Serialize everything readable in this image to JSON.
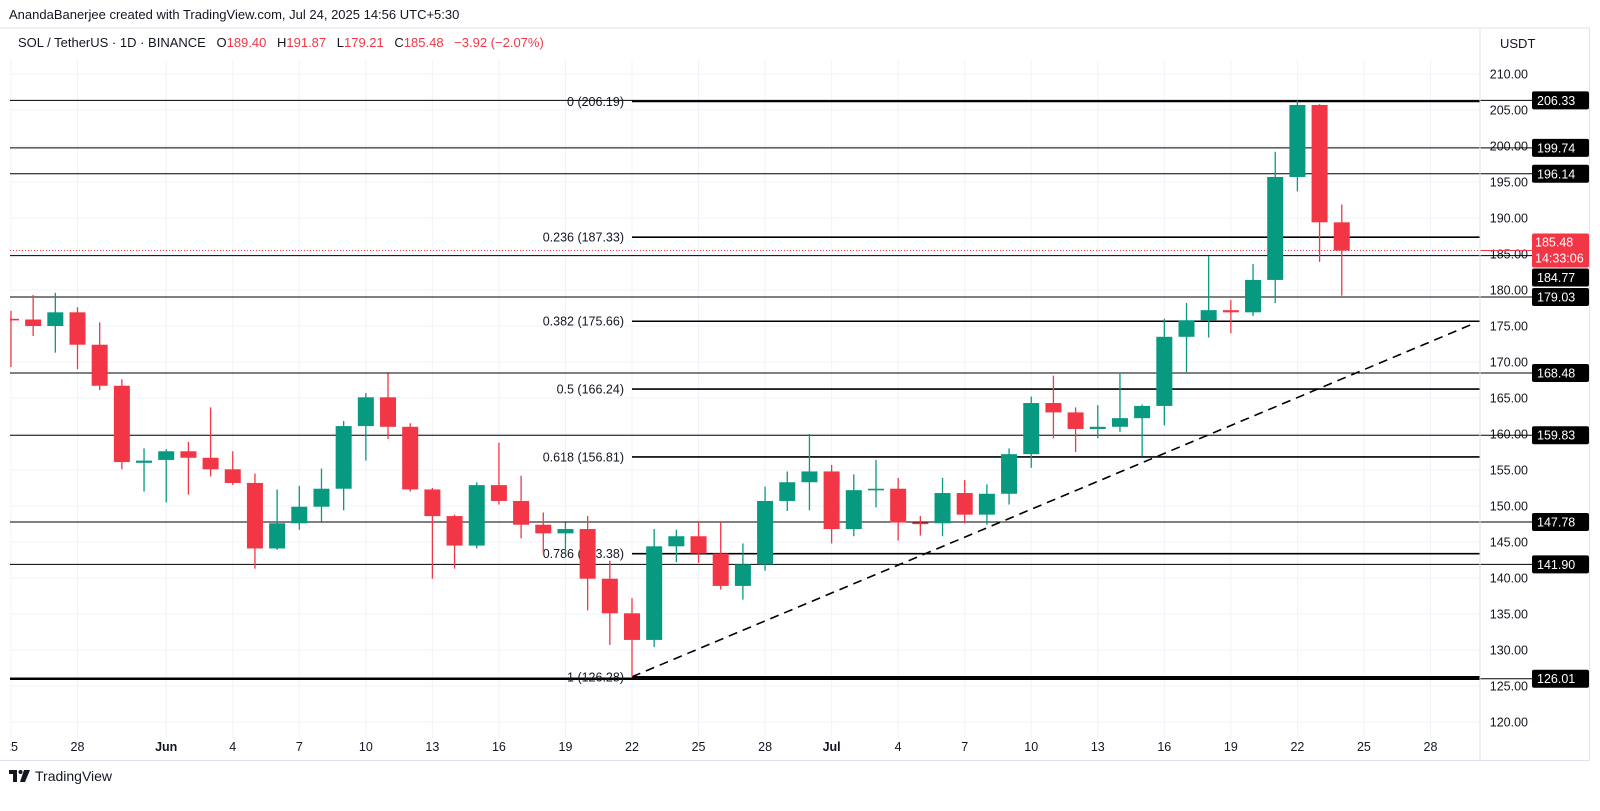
{
  "attribution": "AnandaBanerjee created with TradingView.com, Jul 24, 2025 14:56 UTC+5:30",
  "legend": {
    "symbol": "SOL / TetherUS · 1D · BINANCE",
    "o_label": "O",
    "o": "189.40",
    "h_label": "H",
    "h": "191.87",
    "l_label": "L",
    "l": "179.21",
    "c_label": "C",
    "c": "185.48",
    "change": "−3.92 (−2.07%)"
  },
  "currency": "USDT",
  "logo_text": "TradingView",
  "colors": {
    "up": "#089981",
    "down": "#F23645",
    "text": "#131722",
    "grid": "#f0f3fa",
    "level": "#000000"
  },
  "chart_data": {
    "type": "candlestick",
    "ylim": [
      117,
      212
    ],
    "grid": true,
    "y_ticks": [
      "210.00",
      "205.00",
      "200.00",
      "195.00",
      "190.00",
      "185.00",
      "180.00",
      "175.00",
      "170.00",
      "165.00",
      "160.00",
      "155.00",
      "150.00",
      "145.00",
      "140.00",
      "135.00",
      "130.00",
      "125.00",
      "120.00"
    ],
    "x_ticks": [
      {
        "date": "2025-05-25",
        "label": "25"
      },
      {
        "date": "2025-05-28",
        "label": "28"
      },
      {
        "date": "2025-06-01",
        "label": "Jun",
        "bold": true
      },
      {
        "date": "2025-06-04",
        "label": "4"
      },
      {
        "date": "2025-06-07",
        "label": "7"
      },
      {
        "date": "2025-06-10",
        "label": "10"
      },
      {
        "date": "2025-06-13",
        "label": "13"
      },
      {
        "date": "2025-06-16",
        "label": "16"
      },
      {
        "date": "2025-06-19",
        "label": "19"
      },
      {
        "date": "2025-06-22",
        "label": "22"
      },
      {
        "date": "2025-06-25",
        "label": "25"
      },
      {
        "date": "2025-06-28",
        "label": "28"
      },
      {
        "date": "2025-07-01",
        "label": "Jul",
        "bold": true
      },
      {
        "date": "2025-07-04",
        "label": "4"
      },
      {
        "date": "2025-07-07",
        "label": "7"
      },
      {
        "date": "2025-07-10",
        "label": "10"
      },
      {
        "date": "2025-07-13",
        "label": "13"
      },
      {
        "date": "2025-07-16",
        "label": "16"
      },
      {
        "date": "2025-07-19",
        "label": "19"
      },
      {
        "date": "2025-07-22",
        "label": "22"
      },
      {
        "date": "2025-07-25",
        "label": "25"
      },
      {
        "date": "2025-07-28",
        "label": "28"
      }
    ],
    "candles": [
      [
        "2025-05-25",
        176.0,
        177.1,
        169.3,
        175.8
      ],
      [
        "2025-05-26",
        175.9,
        179.3,
        173.6,
        175.0
      ],
      [
        "2025-05-27",
        175.0,
        179.6,
        171.3,
        176.9
      ],
      [
        "2025-05-28",
        176.9,
        177.6,
        169.0,
        172.4
      ],
      [
        "2025-05-29",
        172.4,
        175.5,
        166.1,
        166.7
      ],
      [
        "2025-05-30",
        166.7,
        167.6,
        155.1,
        156.1
      ],
      [
        "2025-05-31",
        156.0,
        158.0,
        152.0,
        156.3
      ],
      [
        "2025-06-01",
        156.4,
        157.9,
        150.5,
        157.6
      ],
      [
        "2025-06-02",
        157.6,
        158.9,
        151.6,
        156.7
      ],
      [
        "2025-06-03",
        156.7,
        163.7,
        154.1,
        155.1
      ],
      [
        "2025-06-04",
        155.1,
        157.6,
        152.9,
        153.2
      ],
      [
        "2025-06-05",
        153.2,
        154.5,
        141.3,
        144.1
      ],
      [
        "2025-06-06",
        144.1,
        152.3,
        143.9,
        147.6
      ],
      [
        "2025-06-07",
        147.6,
        152.8,
        146.7,
        149.9
      ],
      [
        "2025-06-08",
        149.9,
        155.2,
        147.8,
        152.4
      ],
      [
        "2025-06-09",
        152.4,
        161.8,
        149.4,
        161.1
      ],
      [
        "2025-06-10",
        161.1,
        165.7,
        156.3,
        165.1
      ],
      [
        "2025-06-11",
        165.1,
        168.4,
        159.3,
        161.0
      ],
      [
        "2025-06-12",
        161.0,
        161.5,
        152.0,
        152.3
      ],
      [
        "2025-06-13",
        152.3,
        152.5,
        139.9,
        148.6
      ],
      [
        "2025-06-14",
        148.6,
        148.8,
        141.3,
        144.5
      ],
      [
        "2025-06-15",
        144.5,
        153.3,
        144.1,
        152.9
      ],
      [
        "2025-06-16",
        152.9,
        158.8,
        150.2,
        150.7
      ],
      [
        "2025-06-17",
        150.7,
        154.2,
        145.5,
        147.4
      ],
      [
        "2025-06-18",
        147.4,
        149.1,
        143.4,
        146.2
      ],
      [
        "2025-06-19",
        146.2,
        147.7,
        143.4,
        146.8
      ],
      [
        "2025-06-20",
        146.8,
        148.6,
        135.5,
        139.9
      ],
      [
        "2025-06-21",
        139.9,
        142.4,
        130.7,
        135.1
      ],
      [
        "2025-06-22",
        135.1,
        137.2,
        126.28,
        131.4
      ],
      [
        "2025-06-23",
        131.4,
        146.8,
        130.4,
        144.4
      ],
      [
        "2025-06-24",
        144.4,
        146.7,
        142.2,
        145.8
      ],
      [
        "2025-06-25",
        145.8,
        147.9,
        142.1,
        143.4
      ],
      [
        "2025-06-26",
        143.4,
        147.9,
        138.4,
        138.9
      ],
      [
        "2025-06-27",
        138.9,
        144.8,
        137.0,
        141.9
      ],
      [
        "2025-06-28",
        141.9,
        152.7,
        141.0,
        150.7
      ],
      [
        "2025-06-29",
        150.7,
        154.8,
        149.3,
        153.3
      ],
      [
        "2025-06-30",
        153.3,
        160.0,
        149.4,
        154.8
      ],
      [
        "2025-07-01",
        154.8,
        155.7,
        144.8,
        146.8
      ],
      [
        "2025-07-02",
        146.8,
        154.4,
        145.8,
        152.2
      ],
      [
        "2025-07-03",
        152.2,
        156.4,
        149.8,
        152.4
      ],
      [
        "2025-07-04",
        152.4,
        153.9,
        145.2,
        147.7
      ],
      [
        "2025-07-05",
        147.7,
        148.6,
        145.9,
        147.6
      ],
      [
        "2025-07-06",
        147.6,
        153.9,
        145.8,
        151.8
      ],
      [
        "2025-07-07",
        151.8,
        153.6,
        147.6,
        148.8
      ],
      [
        "2025-07-08",
        148.8,
        153.0,
        147.4,
        151.7
      ],
      [
        "2025-07-09",
        151.7,
        158.0,
        150.2,
        157.2
      ],
      [
        "2025-07-10",
        157.2,
        165.2,
        155.3,
        164.3
      ],
      [
        "2025-07-11",
        164.3,
        168.1,
        159.4,
        163.0
      ],
      [
        "2025-07-12",
        163.0,
        163.7,
        157.5,
        160.7
      ],
      [
        "2025-07-13",
        160.7,
        164.0,
        159.4,
        161.0
      ],
      [
        "2025-07-14",
        161.0,
        168.5,
        160.3,
        162.2
      ],
      [
        "2025-07-15",
        162.2,
        164.1,
        156.9,
        163.9
      ],
      [
        "2025-07-16",
        163.9,
        176.0,
        161.2,
        173.5
      ],
      [
        "2025-07-17",
        173.5,
        178.2,
        168.6,
        175.8
      ],
      [
        "2025-07-18",
        175.8,
        184.7,
        173.4,
        177.2
      ],
      [
        "2025-07-19",
        177.2,
        178.6,
        174.0,
        176.9
      ],
      [
        "2025-07-20",
        176.9,
        183.6,
        176.4,
        181.4
      ],
      [
        "2025-07-21",
        181.4,
        199.2,
        178.2,
        195.7
      ],
      [
        "2025-07-22",
        195.7,
        206.33,
        193.7,
        205.7
      ],
      [
        "2025-07-23",
        205.7,
        205.8,
        183.9,
        189.4
      ],
      [
        "2025-07-24",
        189.4,
        191.87,
        179.21,
        185.48
      ]
    ],
    "horizontal_levels": [
      "206.33",
      "199.74",
      "196.14",
      "184.77",
      "179.03",
      "168.48",
      "159.83",
      "147.78",
      "141.90",
      "126.01"
    ],
    "fib_start_date": "2025-06-22",
    "fib_levels": [
      {
        "label": "0 (206.19)",
        "price": 206.19
      },
      {
        "label": "0.236 (187.33)",
        "price": 187.33
      },
      {
        "label": "0.382 (175.66)",
        "price": 175.66
      },
      {
        "label": "0.5 (166.24)",
        "price": 166.24
      },
      {
        "label": "0.618 (156.81)",
        "price": 156.81
      },
      {
        "label": "0.786 (143.38)",
        "price": 143.38
      },
      {
        "label": "1 (126.28)",
        "price": 126.28
      }
    ],
    "trendline": {
      "start": [
        "2025-06-22",
        126.28
      ],
      "end": [
        "2025-07-30",
        175.4
      ],
      "style": "dashed"
    },
    "last_price": {
      "value": "185.48",
      "countdown": "14:33:06"
    }
  }
}
